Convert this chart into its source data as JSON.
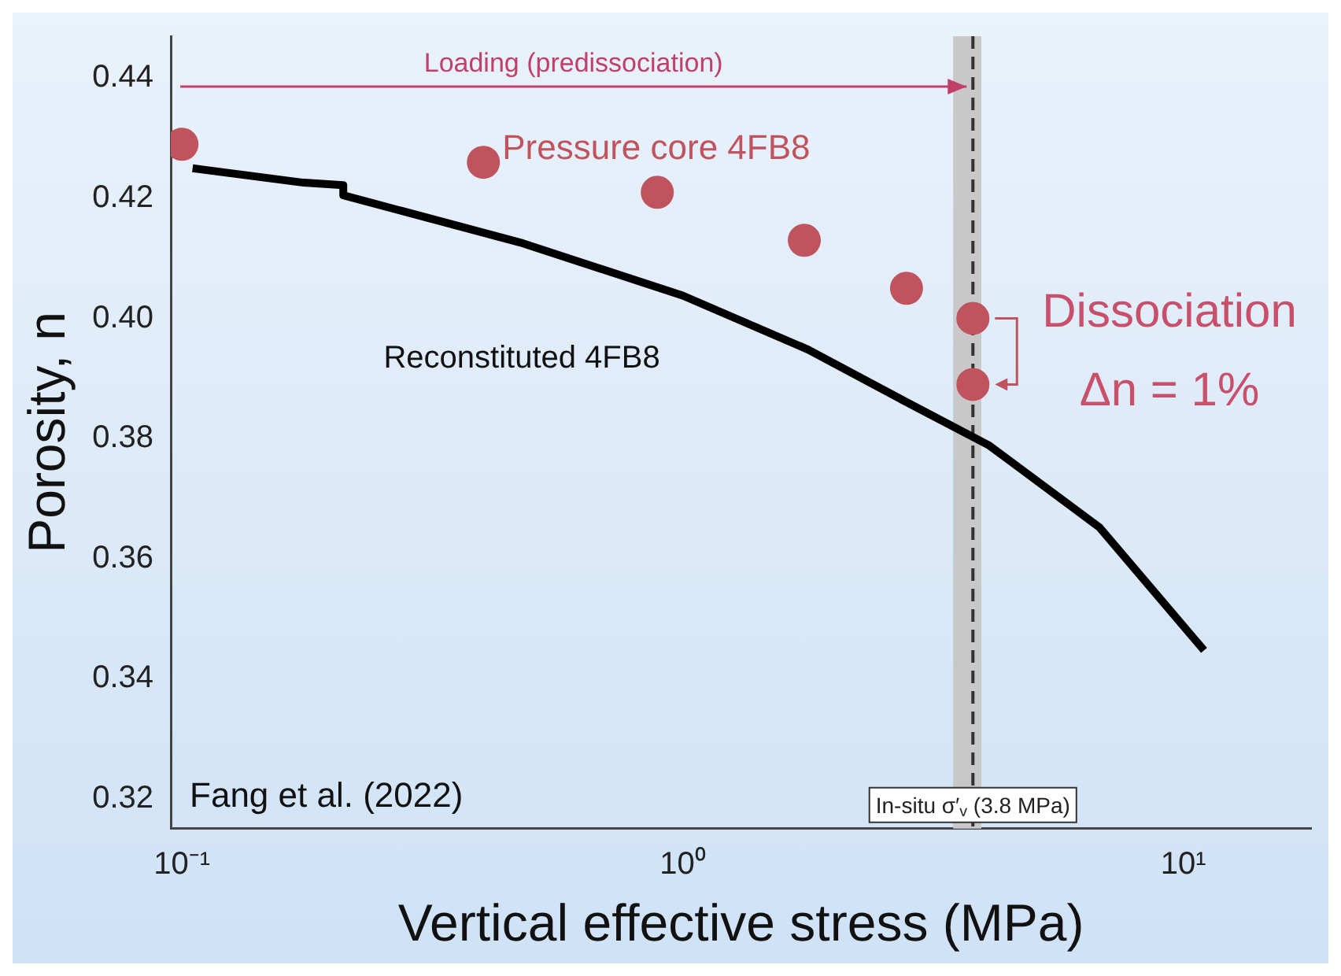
{
  "chart_data": {
    "type": "scatter",
    "xlabel": "Vertical effective stress (MPa)",
    "ylabel": "Porosity, n",
    "log": "x",
    "xlim": [
      0.095,
      18
    ],
    "xticks": [
      {
        "value": 0.1,
        "label": "10⁻¹"
      },
      {
        "value": 1,
        "label": "10⁰"
      },
      {
        "value": 10,
        "label": "10¹"
      }
    ],
    "ylim": [
      0.315,
      0.447
    ],
    "yticks": [
      0.32,
      0.34,
      0.36,
      0.38,
      {
        "value": 0.4,
        "label": "0.40"
      },
      0.42,
      0.44
    ],
    "grid": false,
    "legend": false,
    "series": [
      {
        "name": "Pressure core 4FB8",
        "type": "scatter",
        "marker": "circle",
        "color": "#c0545e",
        "x": [
          0.1,
          0.4,
          0.89,
          1.75,
          2.8,
          3.8,
          3.8
        ],
        "values": [
          0.429,
          0.426,
          0.421,
          0.413,
          0.405,
          0.4,
          0.389
        ]
      },
      {
        "name": "Reconstituted 4FB8",
        "type": "line",
        "marker": "none",
        "color": "#000000",
        "x": [
          0.105,
          0.175,
          0.21,
          0.21,
          0.48,
          1,
          1.78,
          2.75,
          4.1,
          6.8,
          11
        ],
        "values": [
          0.425,
          0.4226,
          0.4222,
          0.4205,
          0.4125,
          0.4038,
          0.3948,
          0.3864,
          0.3788,
          0.3652,
          0.3447
        ]
      }
    ],
    "ref_lines": [
      {
        "axis": "x",
        "value": 3.8,
        "label": "In-situ σ′$_{v}$ (3.8 MPa)",
        "color": "#333333",
        "line_style": "dashed"
      }
    ],
    "bands": [
      {
        "axis": "x",
        "from": 3.47,
        "to": 3.95,
        "color": "#c8c8c8"
      }
    ],
    "annotations": [
      "Loading (predissociation)",
      "Dissociation",
      "Δn = 1%",
      "Fang et al. (2022)"
    ]
  }
}
